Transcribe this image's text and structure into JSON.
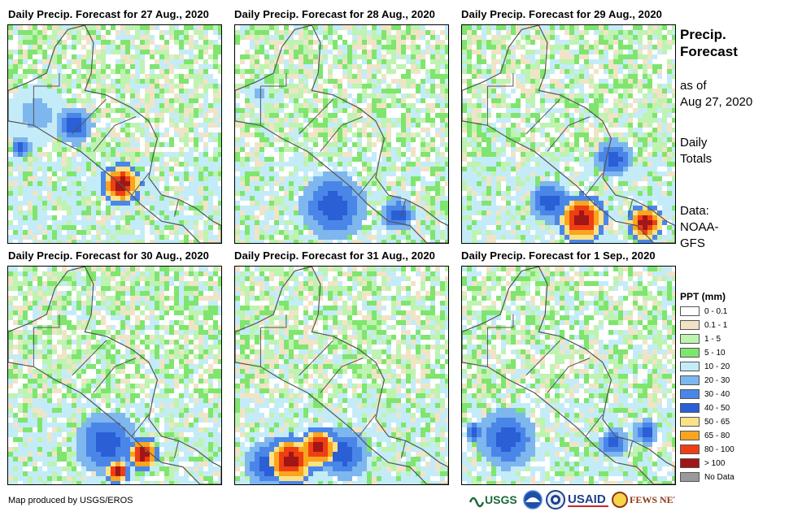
{
  "panels": [
    {
      "title": "Daily Precip. Forecast for 27 Aug., 2020",
      "seed": 11,
      "hotspots": [
        [
          0.52,
          0.72,
          0.1,
          "heavy"
        ],
        [
          0.3,
          0.45,
          0.09,
          "mid"
        ],
        [
          0.05,
          0.55,
          0.05,
          "mid"
        ],
        [
          0.12,
          0.4,
          0.14,
          "light"
        ]
      ]
    },
    {
      "title": "Daily Precip. Forecast for 28 Aug., 2020",
      "seed": 23,
      "hotspots": [
        [
          0.45,
          0.82,
          0.16,
          "mid"
        ],
        [
          0.75,
          0.86,
          0.08,
          "mid"
        ],
        [
          0.1,
          0.3,
          0.06,
          "light"
        ]
      ]
    },
    {
      "title": "Daily Precip. Forecast for 29 Aug., 2020",
      "seed": 37,
      "hotspots": [
        [
          0.55,
          0.88,
          0.12,
          "heavy"
        ],
        [
          0.85,
          0.9,
          0.09,
          "heavy"
        ],
        [
          0.7,
          0.6,
          0.09,
          "mid"
        ],
        [
          0.4,
          0.8,
          0.1,
          "mid"
        ]
      ]
    },
    {
      "title": "Daily Precip. Forecast for 30 Aug., 2020",
      "seed": 41,
      "hotspots": [
        [
          0.62,
          0.85,
          0.08,
          "heavy"
        ],
        [
          0.5,
          0.93,
          0.06,
          "heavy"
        ],
        [
          0.45,
          0.8,
          0.15,
          "mid"
        ]
      ]
    },
    {
      "title": "Daily Precip. Forecast for 31 Aug., 2020",
      "seed": 53,
      "hotspots": [
        [
          0.25,
          0.88,
          0.12,
          "heavy"
        ],
        [
          0.38,
          0.82,
          0.1,
          "heavy"
        ],
        [
          0.5,
          0.85,
          0.12,
          "mid"
        ],
        [
          0.15,
          0.9,
          0.12,
          "mid"
        ]
      ]
    },
    {
      "title": "Daily Precip. Forecast for 1 Sep., 2020",
      "seed": 67,
      "hotspots": [
        [
          0.2,
          0.78,
          0.14,
          "mid"
        ],
        [
          0.7,
          0.8,
          0.07,
          "mid"
        ],
        [
          0.85,
          0.75,
          0.06,
          "mid"
        ],
        [
          0.05,
          0.75,
          0.05,
          "mid"
        ]
      ]
    }
  ],
  "sidebar": {
    "title_line1": "Precip.",
    "title_line2": "Forecast",
    "asof_line1": "as of",
    "asof_line2": "Aug 27, 2020",
    "totals_line1": "Daily",
    "totals_line2": "Totals",
    "data_line1": "Data:",
    "data_line2": "NOAA-",
    "data_line3": "GFS"
  },
  "legend": {
    "title": "PPT (mm)",
    "items": [
      {
        "label": "0 - 0.1",
        "color": "#ffffff"
      },
      {
        "label": "0.1 - 1",
        "color": "#f1e4c6"
      },
      {
        "label": "1 - 5",
        "color": "#bff3b1"
      },
      {
        "label": "5 - 10",
        "color": "#7fe56e"
      },
      {
        "label": "10 - 20",
        "color": "#c4ecf8"
      },
      {
        "label": "20 - 30",
        "color": "#7eb6ee"
      },
      {
        "label": "30 - 40",
        "color": "#4a86e8"
      },
      {
        "label": "40 - 50",
        "color": "#2a5fd6"
      },
      {
        "label": "50 - 65",
        "color": "#fbe286"
      },
      {
        "label": "65 - 80",
        "color": "#f9a51d"
      },
      {
        "label": "80 - 100",
        "color": "#ef3e14"
      },
      {
        "label": "> 100",
        "color": "#a11616"
      },
      {
        "label": "No Data",
        "color": "#9a9a9a"
      }
    ]
  },
  "credit": "Map produced by USGS/EROS",
  "logos": {
    "usgs": "USGS",
    "usaid": "USAID",
    "fewsnet": "FEWS NET"
  }
}
